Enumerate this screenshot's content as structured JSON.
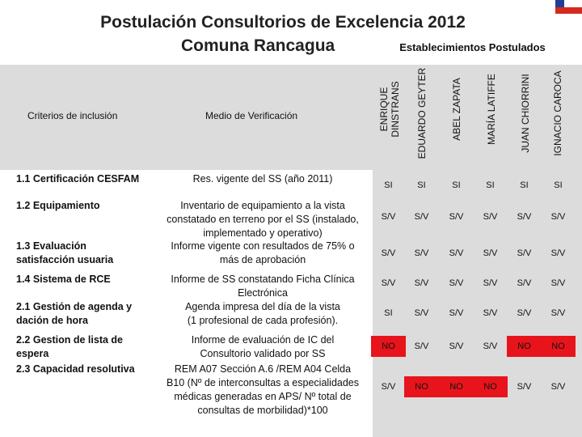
{
  "title": {
    "line1": "Postulación Consultorios de  Excelencia 2012",
    "line2": "Comuna  Rancagua"
  },
  "table": {
    "group_header": "Establecimientos Postulados",
    "col_criterios": "Criterios de inclusión",
    "col_medio": "Medio de Verificación",
    "establishments": [
      [
        "ENRIQUE",
        "DINSTRANS"
      ],
      [
        "EDUARDO GEYTER"
      ],
      [
        "ABEL ZAPATA"
      ],
      [
        "MARÍA LATIFFE"
      ],
      [
        "JUAN CHIORRINI"
      ],
      [
        "IGNACIO CAROCA"
      ]
    ],
    "rows": [
      {
        "criterio": [
          "1.1 Certificación CESFAM"
        ],
        "medio": [
          "Res. vigente del SS (año 2011)"
        ],
        "values": [
          "SI",
          "SI",
          "SI",
          "SI",
          "SI",
          "SI"
        ]
      },
      {
        "criterio": [
          "1.2 Equipamiento"
        ],
        "medio": [
          "Inventario de equipamiento a la vista",
          "constatado en terreno por el SS  (instalado,",
          "implementado y operativo)"
        ],
        "values": [
          "S/V",
          "S/V",
          "S/V",
          "S/V",
          "S/V",
          "S/V"
        ]
      },
      {
        "criterio": [
          "1.3 Evaluación",
          "satisfacción usuaria"
        ],
        "medio": [
          "Informe vigente con resultados de 75% o",
          "más de aprobación"
        ],
        "values": [
          "S/V",
          "S/V",
          "S/V",
          "S/V",
          "S/V",
          "S/V"
        ]
      },
      {
        "criterio": [
          "1.4 Sistema de RCE"
        ],
        "medio": [
          "Informe de SS constatando Ficha Clínica",
          "Electrónica"
        ],
        "values": [
          "S/V",
          "S/V",
          "S/V",
          "S/V",
          "S/V",
          "S/V"
        ]
      },
      {
        "criterio": [
          "2.1 Gestión de agenda y",
          "dación de hora"
        ],
        "medio": [
          "Agenda impresa del día de la vista",
          "(1 profesional de cada profesión)."
        ],
        "values": [
          "SI",
          "S/V",
          "S/V",
          "S/V",
          "S/V",
          "S/V"
        ]
      },
      {
        "criterio": [
          "2.2 Gestion de lista de",
          "espera"
        ],
        "medio": [
          "Informe de evaluación de IC del",
          "Consultorio validado por SS"
        ],
        "values": [
          "NO",
          "S/V",
          "S/V",
          "S/V",
          "NO",
          "NO"
        ]
      },
      {
        "criterio": [
          "2.3 Capacidad resolutiva"
        ],
        "medio": [
          "REM A07 Sección A.6 /REM A04 Celda",
          "B10 (Nº de interconsultas a especialidades",
          "médicas generadas en APS/ Nº total de",
          "consultas de morbilidad)*100"
        ],
        "values": [
          "S/V",
          "NO",
          "NO",
          "NO",
          "S/V",
          "S/V"
        ]
      }
    ]
  },
  "colors": {
    "highlight_no": "#e8141b",
    "header_band": "#dcdcdc",
    "flag_blue": "#1f3f95",
    "flag_red": "#d52b1e"
  }
}
